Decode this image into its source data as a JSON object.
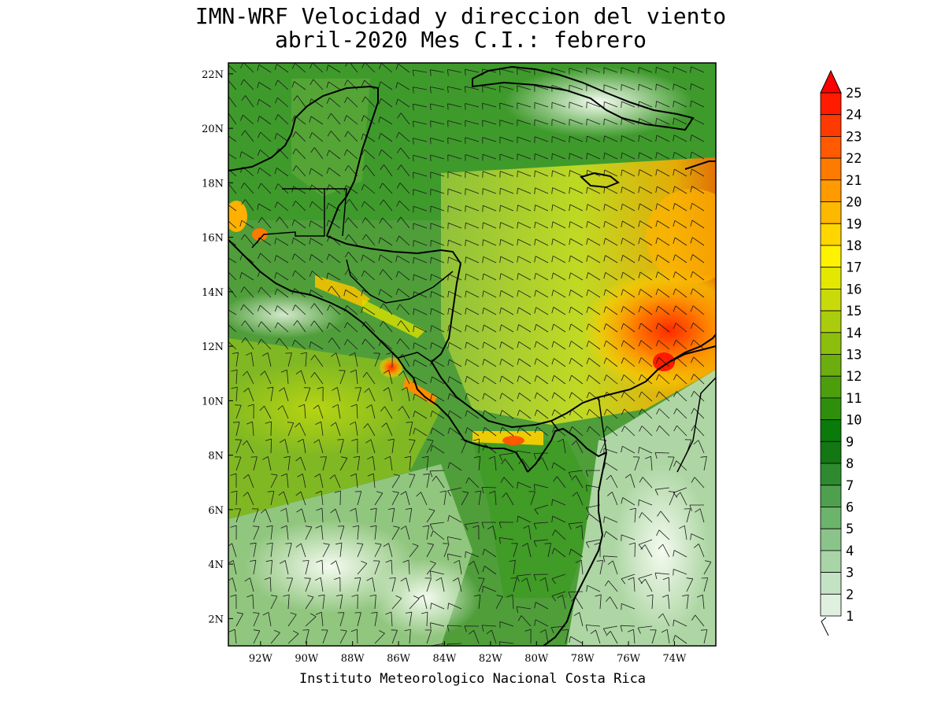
{
  "title": {
    "line1": "IMN-WRF Velocidad y direccion del viento",
    "line2": "abril-2020 Mes C.I.: febrero"
  },
  "credit": "Instituto Meteorologico Nacional Costa Rica",
  "map": {
    "lon_range": [
      -93.4,
      -72.2
    ],
    "lat_range": [
      1.0,
      22.4
    ],
    "lon_ticks": [
      "92W",
      "90W",
      "88W",
      "86W",
      "84W",
      "82W",
      "80W",
      "78W",
      "76W",
      "74W"
    ],
    "lon_tick_values": [
      -92,
      -90,
      -88,
      -86,
      -84,
      -82,
      -80,
      -78,
      -76,
      -74
    ],
    "lat_ticks": [
      "2N",
      "4N",
      "6N",
      "8N",
      "10N",
      "12N",
      "14N",
      "16N",
      "18N",
      "20N",
      "22N"
    ],
    "lat_tick_values": [
      2,
      4,
      6,
      8,
      10,
      12,
      14,
      16,
      18,
      20,
      22
    ],
    "variable": "wind speed and direction (barbs)"
  },
  "legend": {
    "labels": [
      "1",
      "2",
      "3",
      "4",
      "5",
      "6",
      "7",
      "8",
      "9",
      "10",
      "11",
      "12",
      "13",
      "14",
      "15",
      "16",
      "17",
      "18",
      "19",
      "20",
      "21",
      "22",
      "23",
      "24",
      "25"
    ],
    "colors": [
      "#ffffff",
      "#e0f0e0",
      "#c4e2c4",
      "#a8d4a8",
      "#8ac48a",
      "#6cb46c",
      "#4ea04e",
      "#2e8a2e",
      "#137813",
      "#0a7a0a",
      "#2f8f0c",
      "#4c9e0c",
      "#6cae0e",
      "#8cbe0e",
      "#aacc0c",
      "#c8da0a",
      "#e4e800",
      "#fff200",
      "#ffd600",
      "#ffb800",
      "#ff9a00",
      "#ff7a00",
      "#ff5a00",
      "#ff3a00",
      "#ff1a00"
    ],
    "max_arrow_color": "#ff0000"
  }
}
